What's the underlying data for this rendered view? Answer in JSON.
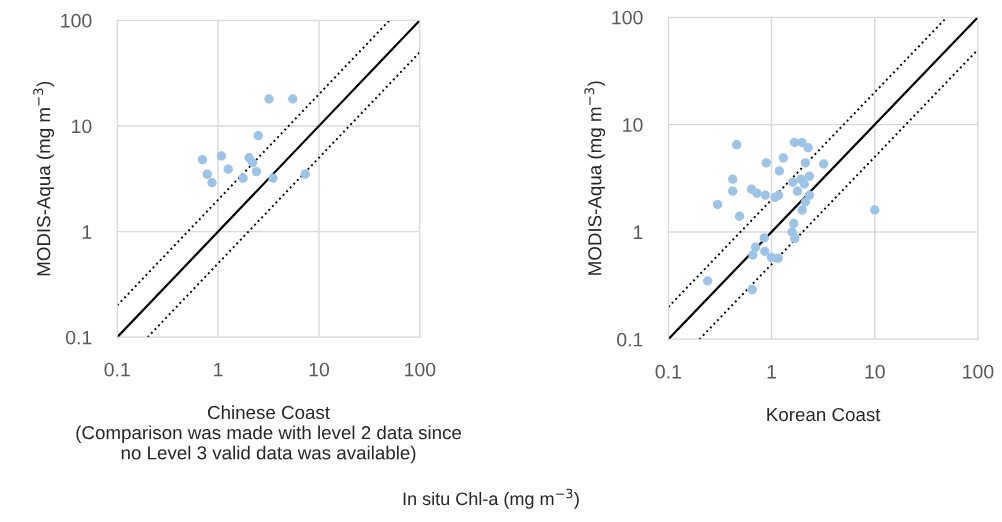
{
  "chart_data": [
    {
      "type": "scatter",
      "xlabel": "Chinese Coast\n(Comparison was made with level 2 data since\nno Level 3 valid data was available)",
      "ylabel": "MODIS-Aqua (mg m$^{−3}$)",
      "log": "xy",
      "xlim": [
        0.1,
        100
      ],
      "ylim": [
        0.1,
        100
      ],
      "xticks": [
        0.1,
        1,
        10,
        100
      ],
      "yticks": [
        0.1,
        1,
        10,
        100
      ],
      "grid": true,
      "annotations": [
        "In situ Chl-a (mg m$^{−3}$)"
      ],
      "series": [
        {
          "marker": "circle",
          "color": "#9dc3e6",
          "x": [
            3.2,
            5.5,
            2.5,
            0.7,
            1.08,
            2.03,
            2.2,
            1.26,
            2.4,
            0.78,
            1.77,
            3.5,
            7.3,
            0.87
          ],
          "values": [
            18,
            18,
            8.1,
            4.8,
            5.2,
            5.0,
            4.5,
            3.9,
            3.7,
            3.5,
            3.2,
            3.2,
            3.5,
            2.9
          ]
        },
        {
          "type": "line",
          "color": "#000000",
          "line_style": "solid",
          "x": [
            0.1,
            100
          ],
          "values": [
            0.1,
            100
          ]
        },
        {
          "type": "line",
          "color": "#000000",
          "line_style": "dotted",
          "x": [
            0.1,
            50
          ],
          "values": [
            0.2,
            100
          ]
        },
        {
          "type": "line",
          "color": "#000000",
          "line_style": "dotted",
          "x": [
            0.2,
            100
          ],
          "values": [
            0.1,
            50
          ]
        }
      ]
    },
    {
      "type": "scatter",
      "xlabel": "Korean Coast",
      "ylabel": "MODIS-Aqua (mg m$^{−3}$)",
      "log": "xy",
      "xlim": [
        0.1,
        100
      ],
      "ylim": [
        0.1,
        100
      ],
      "xticks": [
        0.1,
        1,
        10,
        100
      ],
      "yticks": [
        0.1,
        1,
        10,
        100
      ],
      "grid": true,
      "series": [
        {
          "marker": "circle",
          "color": "#9dc3e6",
          "x": [
            0.46,
            1.67,
            1.98,
            2.26,
            1.3,
            0.89,
            2.13,
            3.2,
            1.19,
            0.42,
            1.93,
            2.33,
            1.61,
            2.08,
            0.42,
            0.64,
            0.72,
            0.87,
            1.08,
            1.17,
            1.78,
            2.33,
            0.3,
            2.13,
            1.98,
            10,
            0.49,
            1.64,
            1.58,
            1.68,
            0.85,
            0.7,
            0.66,
            0.86,
            1.0,
            1.16,
            0.24,
            0.65
          ],
          "values": [
            6.5,
            6.8,
            6.8,
            6.1,
            4.9,
            4.4,
            4.4,
            4.3,
            3.7,
            3.1,
            3.1,
            3.3,
            2.9,
            2.8,
            2.4,
            2.5,
            2.3,
            2.2,
            2.1,
            2.2,
            2.4,
            2.2,
            1.8,
            1.9,
            1.6,
            1.6,
            1.4,
            1.2,
            1.0,
            0.87,
            0.88,
            0.72,
            0.61,
            0.66,
            0.58,
            0.57,
            0.35,
            0.29
          ]
        },
        {
          "type": "line",
          "color": "#000000",
          "line_style": "solid",
          "x": [
            0.1,
            100
          ],
          "values": [
            0.1,
            100
          ]
        },
        {
          "type": "line",
          "color": "#000000",
          "line_style": "dotted",
          "x": [
            0.1,
            50
          ],
          "values": [
            0.2,
            100
          ]
        },
        {
          "type": "line",
          "color": "#000000",
          "line_style": "dotted",
          "x": [
            0.2,
            100
          ],
          "values": [
            0.1,
            50
          ]
        }
      ]
    }
  ]
}
